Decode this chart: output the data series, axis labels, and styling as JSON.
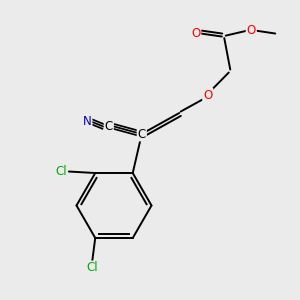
{
  "bg_color": "#ebebeb",
  "atom_colors": {
    "C": "#000000",
    "N": "#0000cc",
    "O": "#ff0000",
    "Cl": "#00aa00",
    "bond": "#000000"
  },
  "figsize": [
    3.0,
    3.0
  ],
  "dpi": 100
}
